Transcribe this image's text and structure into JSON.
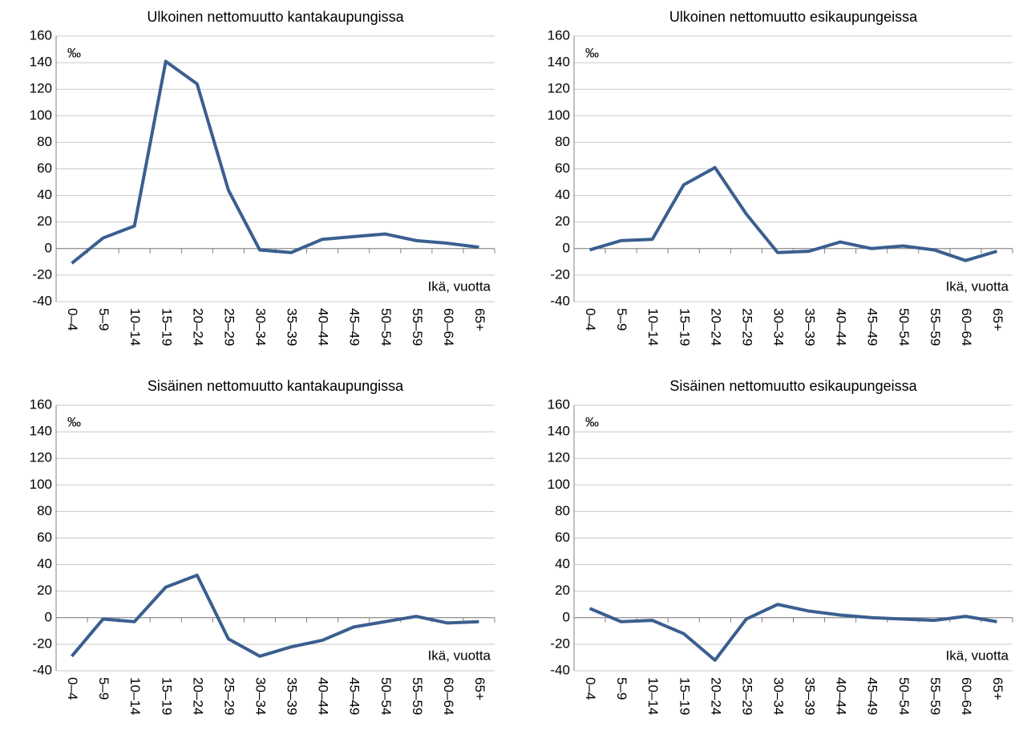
{
  "chart_data": [
    {
      "type": "line",
      "title": "Ulkoinen nettomuutto kantakaupungissa",
      "y_label": "‰",
      "x_label": "Ikä, vuotta",
      "categories": [
        "0–4",
        "5–9",
        "10–14",
        "15–19",
        "20–24",
        "25–29",
        "30–34",
        "35–39",
        "40–44",
        "45–49",
        "50–54",
        "55–59",
        "60–64",
        "65+"
      ],
      "values": [
        -11,
        8,
        17,
        141,
        124,
        44,
        -1,
        -3,
        7,
        9,
        11,
        6,
        4,
        1
      ],
      "color": "#3a5f8f",
      "ylim": [
        -40,
        160
      ],
      "yticks": [
        -40,
        -20,
        0,
        20,
        40,
        60,
        80,
        100,
        120,
        140,
        160
      ],
      "grid": true
    },
    {
      "type": "line",
      "title": "Ulkoinen nettomuutto esikaupungeissa",
      "y_label": "‰",
      "x_label": "Ikä, vuotta",
      "categories": [
        "0–4",
        "5–9",
        "10–14",
        "15–19",
        "20–24",
        "25–29",
        "30–34",
        "35–39",
        "40–44",
        "45–49",
        "50–54",
        "55–59",
        "60–64",
        "65+"
      ],
      "values": [
        -1,
        6,
        7,
        48,
        61,
        26,
        -3,
        -2,
        5,
        0,
        2,
        -1,
        -9,
        -2
      ],
      "color": "#3a5f8f",
      "ylim": [
        -40,
        160
      ],
      "yticks": [
        -40,
        -20,
        0,
        20,
        40,
        60,
        80,
        100,
        120,
        140,
        160
      ],
      "grid": true
    },
    {
      "type": "line",
      "title": "Sisäinen nettomuutto kantakaupungissa",
      "y_label": "‰",
      "x_label": "Ikä, vuotta",
      "categories": [
        "0–4",
        "5–9",
        "10–14",
        "15–19",
        "20–24",
        "25–29",
        "30–34",
        "35–39",
        "40–44",
        "45–49",
        "50–54",
        "55–59",
        "60–64",
        "65+"
      ],
      "values": [
        -29,
        -1,
        -3,
        23,
        32,
        -16,
        -29,
        -22,
        -17,
        -7,
        -3,
        1,
        -4,
        -3
      ],
      "color": "#3a5f8f",
      "ylim": [
        -40,
        160
      ],
      "yticks": [
        -40,
        -20,
        0,
        20,
        40,
        60,
        80,
        100,
        120,
        140,
        160
      ],
      "grid": true
    },
    {
      "type": "line",
      "title": "Sisäinen nettomuutto esikaupungeissa",
      "y_label": "‰",
      "x_label": "Ikä, vuotta",
      "categories": [
        "0–4",
        "5–9",
        "10–14",
        "15–19",
        "20–24",
        "25–29",
        "30–34",
        "35–39",
        "40–44",
        "45–49",
        "50–54",
        "55–59",
        "60–64",
        "65+"
      ],
      "values": [
        7,
        -3,
        -2,
        -12,
        -32,
        -1,
        10,
        5,
        2,
        0,
        -1,
        -2,
        1,
        -3
      ],
      "color": "#3a5f8f",
      "ylim": [
        -40,
        160
      ],
      "yticks": [
        -40,
        -20,
        0,
        20,
        40,
        60,
        80,
        100,
        120,
        140,
        160
      ],
      "grid": true
    }
  ]
}
